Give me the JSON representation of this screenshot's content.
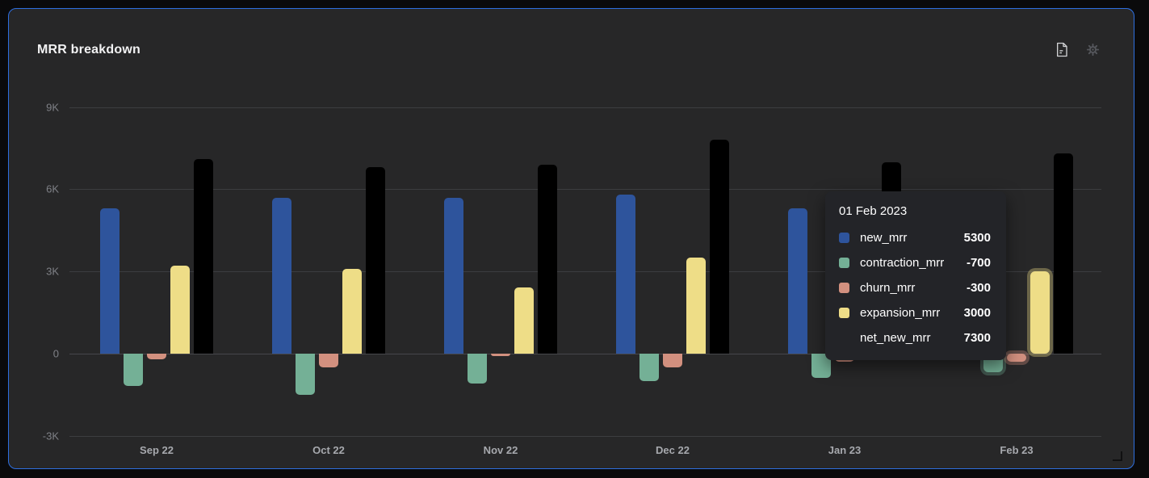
{
  "widget": {
    "title": "MRR breakdown",
    "icons": [
      {
        "name": "export-document-icon",
        "color": "#d2d3d5"
      },
      {
        "name": "settings-gear-icon",
        "color": "#55575c"
      }
    ]
  },
  "colors": {
    "page_bg": "#0a0a0b",
    "card_bg": "#272728",
    "card_border": "#2e6fe0",
    "grid": "#3c3d40",
    "y_axis_text": "#7f8187",
    "x_axis_text": "#a7a9ae",
    "title_text": "#f2f2f3",
    "tooltip_bg": "#232428"
  },
  "chart_data": {
    "type": "bar",
    "title": "MRR breakdown",
    "categories": [
      "Sep 22",
      "Oct 22",
      "Nov 22",
      "Dec 22",
      "Jan 23",
      "Feb 23"
    ],
    "series": [
      {
        "name": "new_mrr",
        "color": "#2e549c",
        "values": [
          5300,
          5700,
          5700,
          5800,
          5300,
          5300
        ]
      },
      {
        "name": "contraction_mrr",
        "color": "#74b096",
        "values": [
          -1200,
          -1500,
          -1100,
          -1000,
          -900,
          -700
        ]
      },
      {
        "name": "churn_mrr",
        "color": "#d2907f",
        "values": [
          -200,
          -500,
          -100,
          -500,
          -300,
          -300
        ]
      },
      {
        "name": "expansion_mrr",
        "color": "#eedd87",
        "values": [
          3200,
          3100,
          2400,
          3500,
          2900,
          3000
        ]
      },
      {
        "name": "net_new_mrr",
        "color": "#000000",
        "values": [
          7100,
          6800,
          6900,
          7800,
          7000,
          7300
        ]
      }
    ],
    "ylim": [
      -3000,
      9000
    ],
    "yticks": [
      {
        "label": "9K",
        "value": 9000
      },
      {
        "label": "6K",
        "value": 6000
      },
      {
        "label": "3K",
        "value": 3000
      },
      {
        "label": "0",
        "value": 0
      },
      {
        "label": "-3K",
        "value": -3000
      }
    ],
    "grid": true,
    "legend": "none",
    "highlighted_category": "Feb 23",
    "highlighted_series": [
      "contraction_mrr",
      "churn_mrr",
      "expansion_mrr"
    ]
  },
  "tooltip": {
    "title": "01 Feb 2023",
    "rows": [
      {
        "label": "new_mrr",
        "value": "5300",
        "swatch": "#2e549c"
      },
      {
        "label": "contraction_mrr",
        "value": "-700",
        "swatch": "#74b096"
      },
      {
        "label": "churn_mrr",
        "value": "-300",
        "swatch": "#d2907f"
      },
      {
        "label": "expansion_mrr",
        "value": "3000",
        "swatch": "#eedd87"
      },
      {
        "label": "net_new_mrr",
        "value": "7300",
        "swatch": null
      }
    ]
  }
}
